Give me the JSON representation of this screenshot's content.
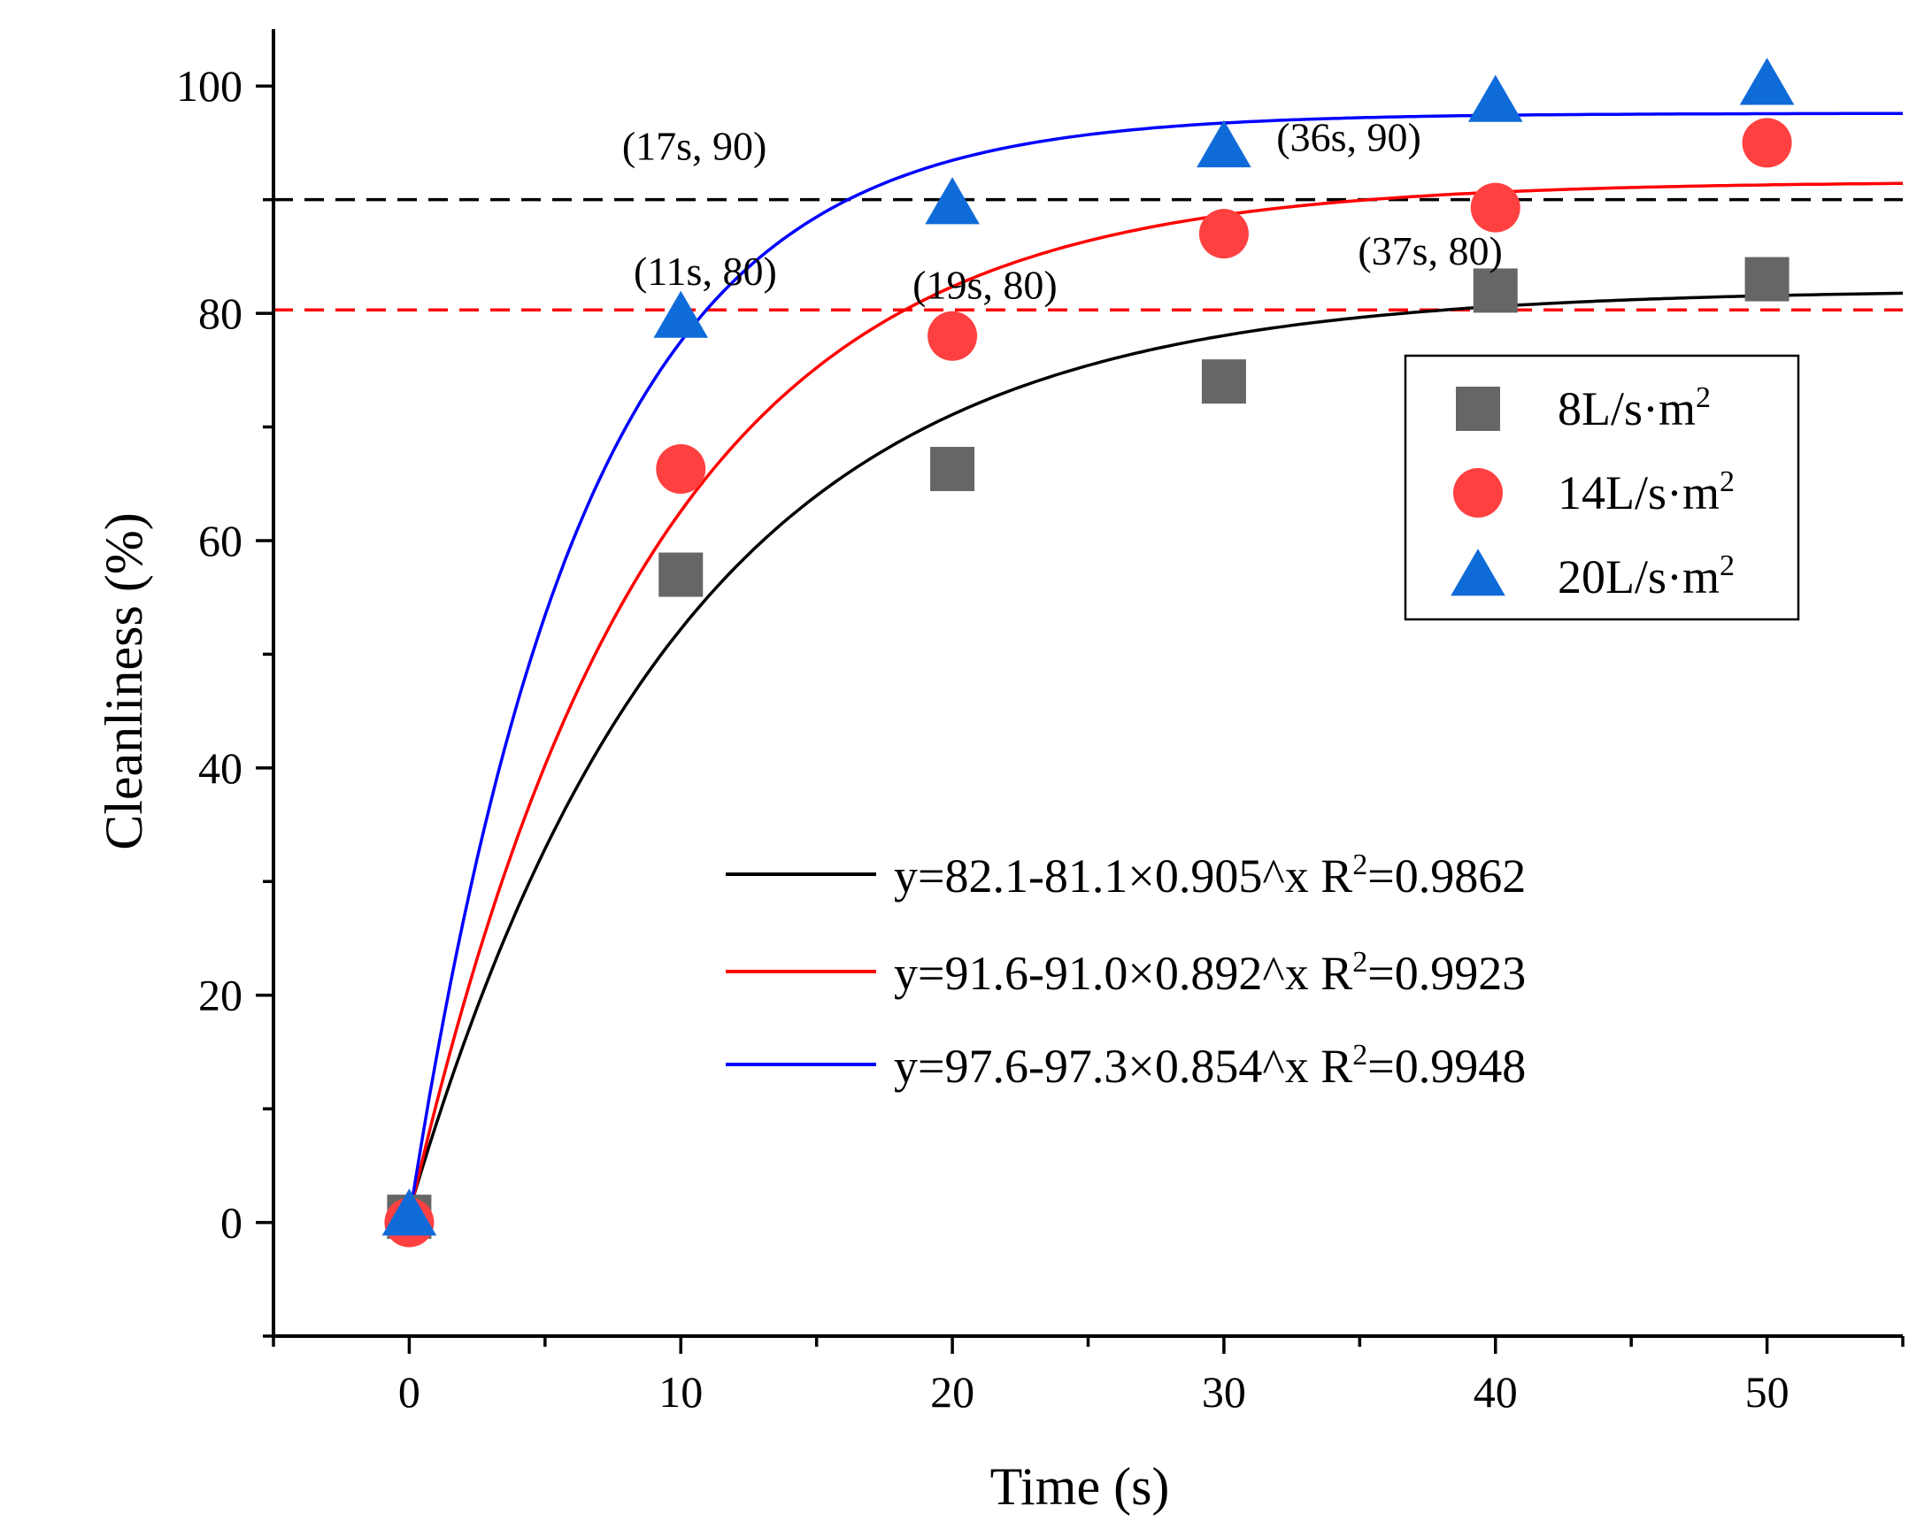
{
  "chart_data": {
    "type": "scatter",
    "xlabel": "Time (s)",
    "ylabel": "Cleanliness (%)",
    "xlim": [
      -5,
      55
    ],
    "ylim": [
      -10,
      105
    ],
    "x_ticks": [
      0,
      10,
      20,
      30,
      40,
      50
    ],
    "y_ticks": [
      0,
      20,
      40,
      60,
      80,
      100
    ],
    "x_minor_step": 5,
    "y_minor_step": 10,
    "x": [
      0,
      10,
      20,
      30,
      40,
      50
    ],
    "series": [
      {
        "name": "8L/s·m²",
        "name_base": "8L/s·m",
        "name_sup": "2",
        "marker": "square",
        "color": "#666666",
        "values": [
          0.5,
          57,
          66.3,
          74,
          82,
          83
        ]
      },
      {
        "name": "14L/s·m²",
        "name_base": "14L/s·m",
        "name_sup": "2",
        "marker": "circle",
        "color": "#ff4040",
        "values": [
          0,
          66.3,
          78,
          87,
          89.3,
          95
        ]
      },
      {
        "name": "20L/s·m²",
        "name_base": "20L/s·m",
        "name_sup": "2",
        "marker": "triangle",
        "color": "#0f6bd8",
        "values": [
          0.5,
          79.5,
          89.5,
          94.5,
          98.5,
          100
        ]
      }
    ],
    "fits": [
      {
        "label": "y=82.1-81.1×0.905^x R²=0.9862",
        "label_pre": "y=82.1-81.1×0.905^x R",
        "label_sup": "2",
        "label_post": "=0.9862",
        "a": 82.1,
        "b": 81.1,
        "c": 0.905,
        "color": "#000000"
      },
      {
        "label": "y=91.6-91.0×0.892^x R²=0.9923",
        "label_pre": "y=91.6-91.0×0.892^x R",
        "label_sup": "2",
        "label_post": "=0.9923",
        "a": 91.6,
        "b": 91.0,
        "c": 0.892,
        "color": "#ff0000"
      },
      {
        "label": "y=97.6-97.3×0.854^x R²=0.9948",
        "label_pre": "y=97.6-97.3×0.854^x R",
        "label_sup": "2",
        "label_post": "=0.9948",
        "a": 97.6,
        "b": 97.3,
        "c": 0.854,
        "color": "#0000ff"
      }
    ],
    "reference_lines": [
      {
        "y": 90,
        "color": "#000000",
        "style": "dashed"
      },
      {
        "y": 80.3,
        "color": "#ff0000",
        "style": "dashed"
      }
    ],
    "annotations": [
      {
        "text": "(17s, 90)",
        "x": 10.5,
        "y": 93.5
      },
      {
        "text": "(36s, 90)",
        "x": 34.6,
        "y": 94.3
      },
      {
        "text": "(11s, 80)",
        "x": 10.9,
        "y": 82.5
      },
      {
        "text": "(19s, 80)",
        "x": 21.2,
        "y": 81.3
      },
      {
        "text": "(37s, 80)",
        "x": 37.6,
        "y": 84.3
      }
    ],
    "legend_position": "right"
  }
}
